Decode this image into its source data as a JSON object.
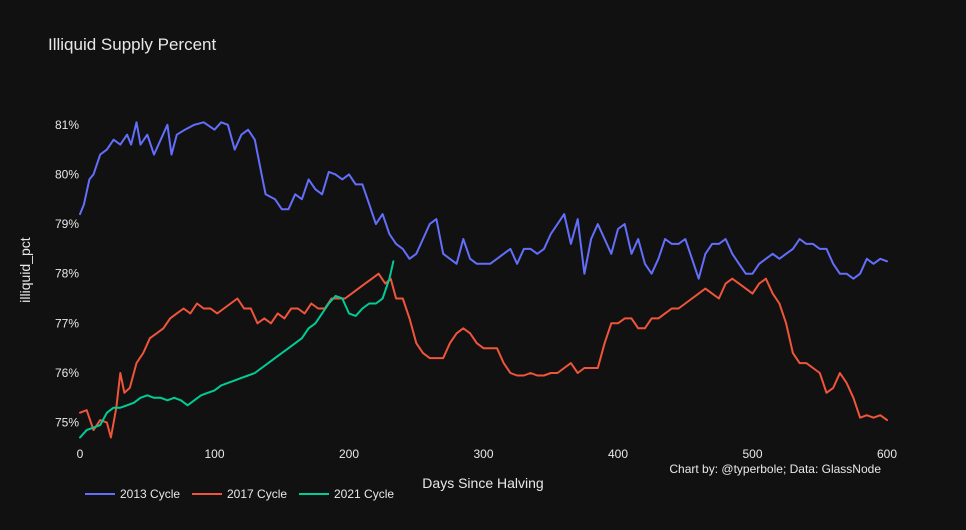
{
  "colors": {
    "background": "#111111",
    "text": "#e8e8e8",
    "series_2013": "#636efa",
    "series_2017": "#ef553b",
    "series_2021": "#00cc96"
  },
  "credit": "Chart by: @typerbole; Data: GlassNode",
  "chart_data": {
    "type": "line",
    "title": "Illiquid Supply Percent",
    "xlabel": "Days Since Halving",
    "ylabel": "illiquid_pct",
    "xlim": [
      0,
      600
    ],
    "ylim": [
      74.65,
      81.6
    ],
    "x_ticks": [
      0,
      100,
      200,
      300,
      400,
      500,
      600
    ],
    "y_ticks": [
      75,
      76,
      77,
      78,
      79,
      80,
      81
    ],
    "y_tick_suffix": "%",
    "grid": false,
    "legend_position": "bottom-left",
    "series": [
      {
        "name": "2013 Cycle",
        "points": [
          [
            0,
            79.2
          ],
          [
            3,
            79.4
          ],
          [
            7,
            79.9
          ],
          [
            10,
            80.0
          ],
          [
            15,
            80.4
          ],
          [
            20,
            80.5
          ],
          [
            25,
            80.7
          ],
          [
            30,
            80.6
          ],
          [
            35,
            80.8
          ],
          [
            38,
            80.6
          ],
          [
            42,
            81.05
          ],
          [
            45,
            80.6
          ],
          [
            50,
            80.8
          ],
          [
            55,
            80.4
          ],
          [
            60,
            80.7
          ],
          [
            65,
            81.0
          ],
          [
            68,
            80.4
          ],
          [
            72,
            80.8
          ],
          [
            78,
            80.9
          ],
          [
            85,
            81.0
          ],
          [
            92,
            81.05
          ],
          [
            100,
            80.9
          ],
          [
            105,
            81.05
          ],
          [
            110,
            81.0
          ],
          [
            115,
            80.5
          ],
          [
            120,
            80.8
          ],
          [
            125,
            80.9
          ],
          [
            130,
            80.7
          ],
          [
            135,
            80.0
          ],
          [
            138,
            79.6
          ],
          [
            145,
            79.5
          ],
          [
            150,
            79.3
          ],
          [
            155,
            79.3
          ],
          [
            160,
            79.6
          ],
          [
            165,
            79.5
          ],
          [
            170,
            79.9
          ],
          [
            175,
            79.7
          ],
          [
            180,
            79.6
          ],
          [
            185,
            80.05
          ],
          [
            190,
            80.0
          ],
          [
            195,
            79.9
          ],
          [
            200,
            80.0
          ],
          [
            205,
            79.8
          ],
          [
            210,
            79.8
          ],
          [
            215,
            79.4
          ],
          [
            220,
            79.0
          ],
          [
            225,
            79.2
          ],
          [
            230,
            78.8
          ],
          [
            235,
            78.6
          ],
          [
            240,
            78.5
          ],
          [
            245,
            78.3
          ],
          [
            250,
            78.4
          ],
          [
            255,
            78.7
          ],
          [
            260,
            79.0
          ],
          [
            265,
            79.1
          ],
          [
            270,
            78.4
          ],
          [
            275,
            78.3
          ],
          [
            280,
            78.2
          ],
          [
            285,
            78.7
          ],
          [
            290,
            78.3
          ],
          [
            295,
            78.2
          ],
          [
            300,
            78.2
          ],
          [
            305,
            78.2
          ],
          [
            310,
            78.3
          ],
          [
            315,
            78.4
          ],
          [
            320,
            78.5
          ],
          [
            325,
            78.2
          ],
          [
            330,
            78.5
          ],
          [
            335,
            78.5
          ],
          [
            340,
            78.4
          ],
          [
            345,
            78.5
          ],
          [
            350,
            78.8
          ],
          [
            355,
            79.0
          ],
          [
            360,
            79.2
          ],
          [
            365,
            78.6
          ],
          [
            370,
            79.1
          ],
          [
            375,
            78.0
          ],
          [
            380,
            78.7
          ],
          [
            385,
            79.0
          ],
          [
            390,
            78.7
          ],
          [
            395,
            78.4
          ],
          [
            400,
            78.9
          ],
          [
            405,
            79.0
          ],
          [
            410,
            78.4
          ],
          [
            415,
            78.7
          ],
          [
            420,
            78.2
          ],
          [
            425,
            78.0
          ],
          [
            430,
            78.3
          ],
          [
            435,
            78.7
          ],
          [
            440,
            78.6
          ],
          [
            445,
            78.6
          ],
          [
            450,
            78.7
          ],
          [
            455,
            78.3
          ],
          [
            460,
            77.9
          ],
          [
            465,
            78.4
          ],
          [
            470,
            78.6
          ],
          [
            475,
            78.6
          ],
          [
            480,
            78.7
          ],
          [
            485,
            78.4
          ],
          [
            490,
            78.2
          ],
          [
            495,
            78.0
          ],
          [
            500,
            78.0
          ],
          [
            505,
            78.2
          ],
          [
            510,
            78.3
          ],
          [
            515,
            78.4
          ],
          [
            520,
            78.3
          ],
          [
            525,
            78.4
          ],
          [
            530,
            78.5
          ],
          [
            535,
            78.7
          ],
          [
            540,
            78.6
          ],
          [
            545,
            78.6
          ],
          [
            550,
            78.5
          ],
          [
            555,
            78.5
          ],
          [
            560,
            78.2
          ],
          [
            565,
            78.0
          ],
          [
            570,
            78.0
          ],
          [
            575,
            77.9
          ],
          [
            580,
            78.0
          ],
          [
            585,
            78.3
          ],
          [
            590,
            78.2
          ],
          [
            595,
            78.3
          ],
          [
            600,
            78.25
          ]
        ]
      },
      {
        "name": "2017 Cycle",
        "points": [
          [
            0,
            75.2
          ],
          [
            5,
            75.25
          ],
          [
            10,
            74.85
          ],
          [
            15,
            75.05
          ],
          [
            20,
            75.0
          ],
          [
            23,
            74.7
          ],
          [
            27,
            75.3
          ],
          [
            30,
            76.0
          ],
          [
            33,
            75.6
          ],
          [
            37,
            75.7
          ],
          [
            42,
            76.2
          ],
          [
            47,
            76.4
          ],
          [
            52,
            76.7
          ],
          [
            57,
            76.8
          ],
          [
            62,
            76.9
          ],
          [
            67,
            77.1
          ],
          [
            72,
            77.2
          ],
          [
            77,
            77.3
          ],
          [
            82,
            77.2
          ],
          [
            87,
            77.4
          ],
          [
            92,
            77.3
          ],
          [
            97,
            77.3
          ],
          [
            102,
            77.2
          ],
          [
            107,
            77.3
          ],
          [
            112,
            77.4
          ],
          [
            117,
            77.5
          ],
          [
            122,
            77.3
          ],
          [
            127,
            77.3
          ],
          [
            132,
            77.0
          ],
          [
            137,
            77.1
          ],
          [
            142,
            77.0
          ],
          [
            147,
            77.2
          ],
          [
            152,
            77.1
          ],
          [
            157,
            77.3
          ],
          [
            162,
            77.3
          ],
          [
            167,
            77.2
          ],
          [
            172,
            77.4
          ],
          [
            177,
            77.3
          ],
          [
            182,
            77.3
          ],
          [
            187,
            77.5
          ],
          [
            192,
            77.5
          ],
          [
            197,
            77.5
          ],
          [
            202,
            77.6
          ],
          [
            207,
            77.7
          ],
          [
            212,
            77.8
          ],
          [
            217,
            77.9
          ],
          [
            222,
            78.0
          ],
          [
            227,
            77.8
          ],
          [
            231,
            77.9
          ],
          [
            235,
            77.5
          ],
          [
            240,
            77.5
          ],
          [
            245,
            77.1
          ],
          [
            250,
            76.6
          ],
          [
            255,
            76.4
          ],
          [
            260,
            76.3
          ],
          [
            265,
            76.3
          ],
          [
            270,
            76.3
          ],
          [
            275,
            76.6
          ],
          [
            280,
            76.8
          ],
          [
            285,
            76.9
          ],
          [
            290,
            76.8
          ],
          [
            295,
            76.6
          ],
          [
            300,
            76.5
          ],
          [
            305,
            76.5
          ],
          [
            310,
            76.5
          ],
          [
            315,
            76.2
          ],
          [
            320,
            76.0
          ],
          [
            325,
            75.95
          ],
          [
            330,
            75.95
          ],
          [
            335,
            76.0
          ],
          [
            340,
            75.95
          ],
          [
            345,
            75.95
          ],
          [
            350,
            76.0
          ],
          [
            355,
            76.0
          ],
          [
            360,
            76.1
          ],
          [
            365,
            76.2
          ],
          [
            370,
            76.0
          ],
          [
            375,
            76.1
          ],
          [
            380,
            76.1
          ],
          [
            385,
            76.1
          ],
          [
            390,
            76.6
          ],
          [
            395,
            77.0
          ],
          [
            400,
            77.0
          ],
          [
            405,
            77.1
          ],
          [
            410,
            77.1
          ],
          [
            415,
            76.9
          ],
          [
            420,
            76.9
          ],
          [
            425,
            77.1
          ],
          [
            430,
            77.1
          ],
          [
            435,
            77.2
          ],
          [
            440,
            77.3
          ],
          [
            445,
            77.3
          ],
          [
            450,
            77.4
          ],
          [
            455,
            77.5
          ],
          [
            460,
            77.6
          ],
          [
            465,
            77.7
          ],
          [
            470,
            77.6
          ],
          [
            475,
            77.5
          ],
          [
            480,
            77.8
          ],
          [
            485,
            77.9
          ],
          [
            490,
            77.8
          ],
          [
            495,
            77.7
          ],
          [
            500,
            77.6
          ],
          [
            505,
            77.8
          ],
          [
            510,
            77.9
          ],
          [
            515,
            77.6
          ],
          [
            520,
            77.4
          ],
          [
            525,
            77.0
          ],
          [
            530,
            76.4
          ],
          [
            535,
            76.2
          ],
          [
            540,
            76.2
          ],
          [
            545,
            76.1
          ],
          [
            550,
            76.0
          ],
          [
            555,
            75.6
          ],
          [
            560,
            75.7
          ],
          [
            565,
            76.0
          ],
          [
            570,
            75.8
          ],
          [
            575,
            75.5
          ],
          [
            580,
            75.1
          ],
          [
            585,
            75.15
          ],
          [
            590,
            75.1
          ],
          [
            595,
            75.15
          ],
          [
            600,
            75.05
          ]
        ]
      },
      {
        "name": "2021 Cycle",
        "points": [
          [
            0,
            74.7
          ],
          [
            5,
            74.85
          ],
          [
            10,
            74.9
          ],
          [
            15,
            74.95
          ],
          [
            20,
            75.2
          ],
          [
            25,
            75.3
          ],
          [
            30,
            75.3
          ],
          [
            35,
            75.35
          ],
          [
            40,
            75.4
          ],
          [
            45,
            75.5
          ],
          [
            50,
            75.55
          ],
          [
            55,
            75.5
          ],
          [
            60,
            75.5
          ],
          [
            65,
            75.45
          ],
          [
            70,
            75.5
          ],
          [
            75,
            75.45
          ],
          [
            80,
            75.35
          ],
          [
            85,
            75.45
          ],
          [
            90,
            75.55
          ],
          [
            95,
            75.6
          ],
          [
            100,
            75.65
          ],
          [
            105,
            75.75
          ],
          [
            110,
            75.8
          ],
          [
            115,
            75.85
          ],
          [
            120,
            75.9
          ],
          [
            125,
            75.95
          ],
          [
            130,
            76.0
          ],
          [
            135,
            76.1
          ],
          [
            140,
            76.2
          ],
          [
            145,
            76.3
          ],
          [
            150,
            76.4
          ],
          [
            155,
            76.5
          ],
          [
            160,
            76.6
          ],
          [
            165,
            76.7
          ],
          [
            170,
            76.9
          ],
          [
            175,
            77.0
          ],
          [
            180,
            77.2
          ],
          [
            185,
            77.4
          ],
          [
            190,
            77.55
          ],
          [
            195,
            77.5
          ],
          [
            200,
            77.2
          ],
          [
            205,
            77.15
          ],
          [
            210,
            77.3
          ],
          [
            215,
            77.4
          ],
          [
            220,
            77.4
          ],
          [
            225,
            77.5
          ],
          [
            230,
            77.9
          ],
          [
            233,
            78.25
          ]
        ]
      }
    ]
  }
}
